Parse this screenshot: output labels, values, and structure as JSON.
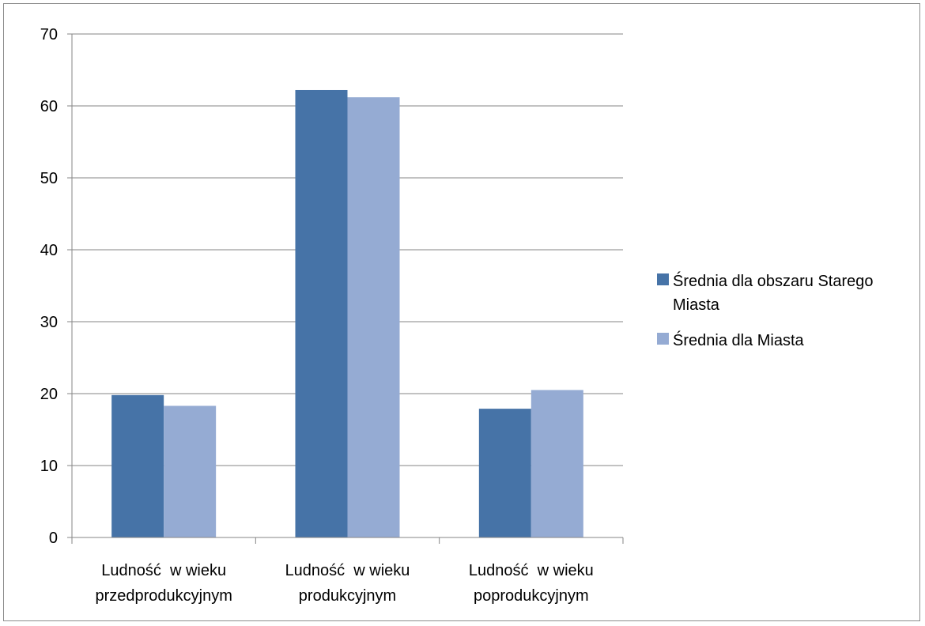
{
  "chart_data": {
    "type": "bar",
    "categories": [
      [
        "Ludność  w wieku",
        "przedprodukcyjnym"
      ],
      [
        "Ludność  w wieku",
        "produkcyjnym"
      ],
      [
        "Ludność  w wieku",
        "poprodukcyjnym"
      ]
    ],
    "series": [
      {
        "name": [
          "Średnia dla obszaru Starego",
          "Miasta"
        ],
        "values": [
          19.8,
          62.2,
          17.9
        ],
        "color": "#4673a7"
      },
      {
        "name": [
          "Średnia dla Miasta"
        ],
        "values": [
          18.3,
          61.2,
          20.5
        ],
        "color": "#95abd3"
      }
    ],
    "ylim": [
      0,
      70
    ],
    "yticks": [
      0,
      10,
      20,
      30,
      40,
      50,
      60,
      70
    ],
    "grid": true,
    "legend": "right"
  }
}
